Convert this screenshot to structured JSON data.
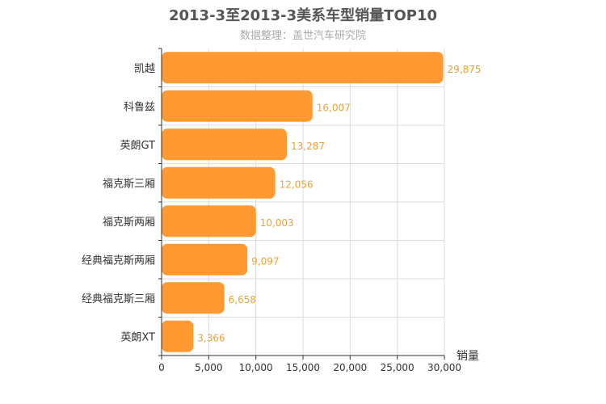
{
  "chart_data": {
    "type": "bar",
    "orientation": "horizontal",
    "title": "2013-3至2013-3美系车型销量TOP10",
    "subtitle": "数据整理：盖世汽车研究院",
    "xlabel": "销量",
    "ylabel": "",
    "categories": [
      "凯越",
      "科鲁兹",
      "英朗GT",
      "福克斯三厢",
      "福克斯两厢",
      "经典福克斯两厢",
      "经典福克斯三厢",
      "英朗XT"
    ],
    "values": [
      29875,
      16007,
      13287,
      12056,
      10003,
      9097,
      6658,
      3366
    ],
    "value_labels": [
      "29,875",
      "16,007",
      "13,287",
      "12,056",
      "10,003",
      "9,097",
      "6,658",
      "3,366"
    ],
    "xlim": [
      0,
      30000
    ],
    "xticks": [
      0,
      5000,
      10000,
      15000,
      20000,
      25000,
      30000
    ],
    "xtick_labels": [
      "0",
      "5,000",
      "10,000",
      "15,000",
      "20,000",
      "25,000",
      "30,000"
    ],
    "grid": true,
    "colors": {
      "bar": "#ff9a33",
      "value_label": "#e8a33d",
      "grid": "#dddddd",
      "axis": "#333333"
    }
  }
}
